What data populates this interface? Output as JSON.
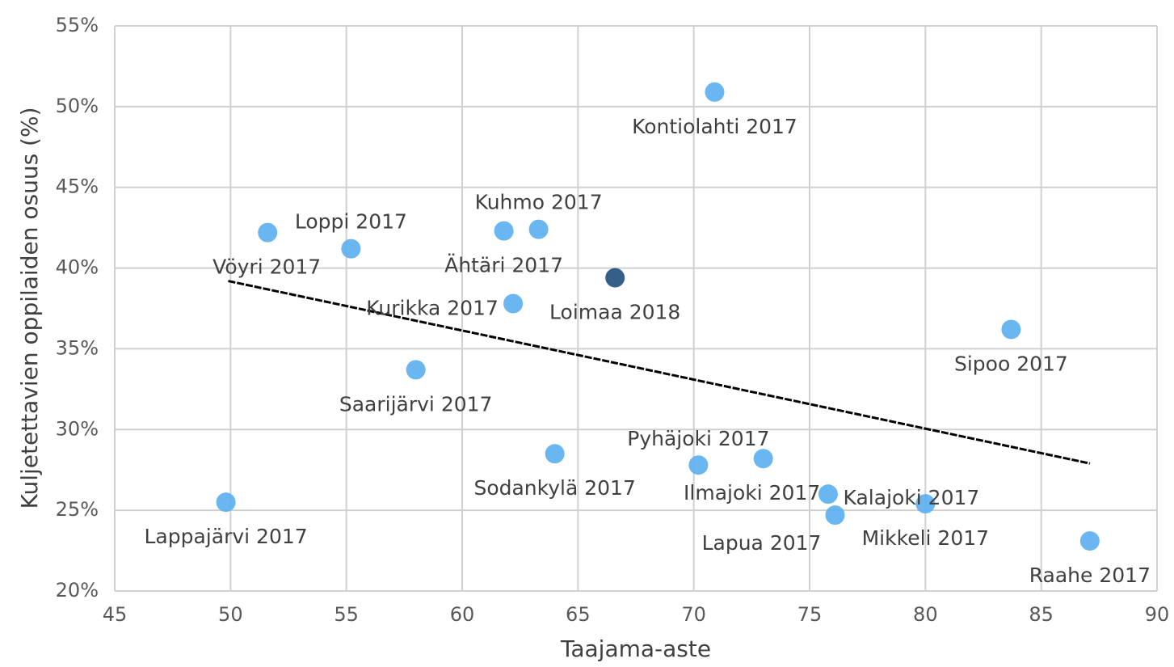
{
  "chart_data": {
    "type": "scatter",
    "xlabel": "Taajama-aste",
    "ylabel": "Kuljetettavien oppilaiden osuus (%)",
    "x": [
      49.8,
      51.6,
      55.2,
      58.0,
      61.8,
      63.3,
      62.2,
      64.0,
      66.6,
      70.9,
      70.2,
      73.0,
      75.8,
      76.1,
      80.0,
      83.7,
      87.1
    ],
    "values": [
      25.5,
      42.2,
      41.2,
      33.7,
      42.3,
      42.4,
      37.8,
      28.5,
      39.4,
      50.9,
      27.8,
      28.2,
      26.0,
      24.7,
      25.4,
      36.2,
      23.1
    ],
    "labels": [
      "Lappajärvi 2017",
      "Vöyri 2017",
      "Loppi 2017",
      "Saarijärvi 2017",
      "Ähtäri 2017",
      "Kuhmo 2017",
      "Kurikka 2017",
      "Sodankylä 2017",
      "Loimaa 2018",
      "Kontiolahti 2017",
      "Pyhäjoki 2017",
      "Ilmajoki 2017",
      "Kalajoki 2017",
      "Lapua 2017",
      "Mikkeli 2017",
      "Sipoo 2017",
      "Raahe 2017"
    ],
    "colors": [
      "#5aaef0",
      "#5aaef0",
      "#5aaef0",
      "#5aaef0",
      "#5aaef0",
      "#5aaef0",
      "#5aaef0",
      "#5aaef0",
      "#1f4e79",
      "#5aaef0",
      "#5aaef0",
      "#5aaef0",
      "#5aaef0",
      "#5aaef0",
      "#5aaef0",
      "#5aaef0",
      "#5aaef0"
    ],
    "trendline": {
      "x": [
        49.9,
        87.1
      ],
      "y": [
        39.2,
        27.9
      ],
      "color": "#000000"
    },
    "xlim": [
      45,
      90
    ],
    "xticks": [
      45,
      50,
      55,
      60,
      65,
      70,
      75,
      80,
      85,
      90
    ],
    "ylim": [
      20,
      55
    ],
    "yticks": [
      {
        "value": 20,
        "label": "20%"
      },
      {
        "value": 25,
        "label": "25%"
      },
      {
        "value": 30,
        "label": "30%"
      },
      {
        "value": 35,
        "label": "35%"
      },
      {
        "value": 40,
        "label": "40%"
      },
      {
        "value": 45,
        "label": "45%"
      },
      {
        "value": 50,
        "label": "50%"
      },
      {
        "value": 55,
        "label": "55%"
      }
    ],
    "grid": true
  }
}
